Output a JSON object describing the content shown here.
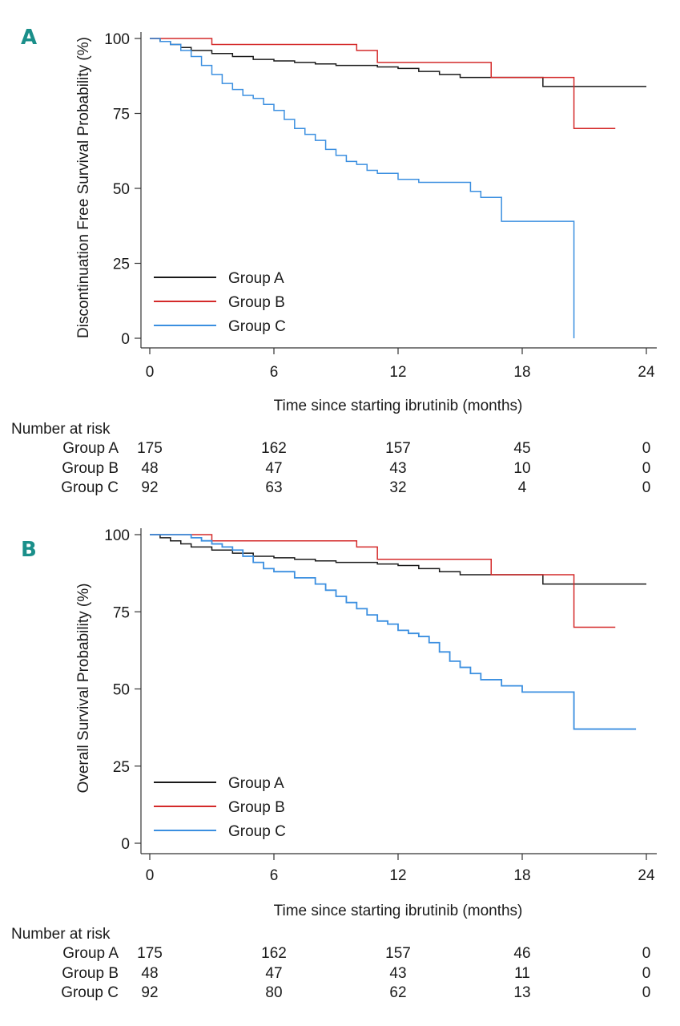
{
  "chart_data": [
    {
      "type": "line",
      "subtype": "kaplan-meier",
      "panel": "A",
      "title": "",
      "xlabel": "Time since starting ibrutinib (months)",
      "ylabel": "Discontinuation Free Survival Probability (%)",
      "xlim": [
        0,
        24
      ],
      "ylim": [
        0,
        100
      ],
      "xticks": [
        "0",
        "6",
        "12",
        "18",
        "24"
      ],
      "yticks": [
        "0",
        "25",
        "50",
        "75",
        "100"
      ],
      "legend_position": "bottom-left",
      "series": [
        {
          "name": "Group A",
          "color": "#1a1a1a",
          "x": [
            0,
            0.5,
            1,
            1.5,
            2,
            3,
            4,
            5,
            6,
            7,
            8,
            9,
            11,
            12,
            13,
            14,
            15,
            16,
            19,
            19.0,
            24
          ],
          "y": [
            100,
            99,
            98,
            97,
            96,
            95,
            94,
            93,
            92.5,
            92,
            91.5,
            91,
            90.5,
            90,
            89,
            88,
            87,
            87,
            87,
            84,
            84
          ]
        },
        {
          "name": "Group B",
          "color": "#d42a2a",
          "x": [
            0,
            3,
            3,
            10,
            10,
            11,
            11,
            16.5,
            16.5,
            20.5,
            20.5,
            22.5
          ],
          "y": [
            100,
            100,
            98,
            98,
            96,
            96,
            92,
            92,
            87,
            87,
            70,
            70
          ],
          "step": true
        },
        {
          "name": "Group C",
          "color": "#3b8fe0",
          "x": [
            0,
            0.5,
            1,
            1.5,
            2,
            2.5,
            3,
            3.5,
            4,
            4.5,
            5,
            5.5,
            6,
            6.5,
            7,
            7.5,
            8,
            8.5,
            9,
            9.5,
            10,
            10.5,
            11,
            12,
            13,
            14,
            15,
            15.5,
            16,
            16.5,
            17,
            17.5,
            18,
            19,
            20,
            20.5,
            20.5
          ],
          "y": [
            100,
            99,
            98,
            96,
            94,
            91,
            88,
            85,
            83,
            81,
            80,
            78,
            76,
            73,
            70,
            68,
            66,
            63,
            61,
            59,
            58,
            56,
            55,
            53,
            52,
            52,
            52,
            49,
            47,
            47,
            39,
            39,
            39,
            39,
            39,
            39,
            0
          ]
        }
      ],
      "risk_table": {
        "title": "Number at risk",
        "timepoints": [
          "0",
          "6",
          "12",
          "18",
          "24"
        ],
        "rows": [
          {
            "label": "Group A",
            "values": [
              "175",
              "162",
              "157",
              "45",
              "0"
            ]
          },
          {
            "label": "Group B",
            "values": [
              "48",
              "47",
              "43",
              "10",
              "0"
            ]
          },
          {
            "label": "Group C",
            "values": [
              "92",
              "63",
              "32",
              "4",
              "0"
            ]
          }
        ]
      }
    },
    {
      "type": "line",
      "subtype": "kaplan-meier",
      "panel": "B",
      "title": "",
      "xlabel": "Time since starting ibrutinib (months)",
      "ylabel": "Overall Survival Probability (%)",
      "xlim": [
        0,
        24
      ],
      "ylim": [
        0,
        100
      ],
      "xticks": [
        "0",
        "6",
        "12",
        "18",
        "24"
      ],
      "yticks": [
        "0",
        "25",
        "50",
        "75",
        "100"
      ],
      "legend_position": "bottom-left",
      "series": [
        {
          "name": "Group A",
          "color": "#1a1a1a",
          "x": [
            0,
            0.5,
            1,
            1.5,
            2,
            3,
            4,
            5,
            6,
            7,
            8,
            9,
            11,
            12,
            13,
            14,
            15,
            16,
            19,
            19.0,
            24
          ],
          "y": [
            100,
            99,
            98,
            97,
            96,
            95,
            94,
            93,
            92.5,
            92,
            91.5,
            91,
            90.5,
            90,
            89,
            88,
            87,
            87,
            87,
            84,
            84
          ]
        },
        {
          "name": "Group B",
          "color": "#d42a2a",
          "x": [
            0,
            3,
            3,
            10,
            10,
            11,
            11,
            16.5,
            16.5,
            20.5,
            20.5,
            22.5
          ],
          "y": [
            100,
            100,
            98,
            98,
            96,
            96,
            92,
            92,
            87,
            87,
            70,
            70
          ],
          "step": true
        },
        {
          "name": "Group C",
          "color": "#3b8fe0",
          "x": [
            0,
            1,
            2,
            2.5,
            3,
            3.5,
            4,
            4.5,
            5,
            5.5,
            6,
            7,
            8,
            8.5,
            9,
            9.5,
            10,
            10.5,
            11,
            11.5,
            12,
            12.5,
            13,
            13.5,
            14,
            14.5,
            15,
            15.5,
            16,
            17,
            18,
            19,
            20,
            20.5,
            20.5,
            23.5
          ],
          "y": [
            100,
            100,
            99,
            98,
            97,
            96,
            95,
            93,
            91,
            89,
            88,
            86,
            84,
            82,
            80,
            78,
            76,
            74,
            72,
            71,
            69,
            68,
            67,
            65,
            62,
            59,
            57,
            55,
            53,
            51,
            49,
            49,
            49,
            49,
            37,
            37
          ]
        }
      ],
      "risk_table": {
        "title": "Number at risk",
        "timepoints": [
          "0",
          "6",
          "12",
          "18",
          "24"
        ],
        "rows": [
          {
            "label": "Group A",
            "values": [
              "175",
              "162",
              "157",
              "46",
              "0"
            ]
          },
          {
            "label": "Group B",
            "values": [
              "48",
              "47",
              "43",
              "11",
              "0"
            ]
          },
          {
            "label": "Group C",
            "values": [
              "92",
              "80",
              "62",
              "13",
              "0"
            ]
          }
        ]
      }
    }
  ]
}
